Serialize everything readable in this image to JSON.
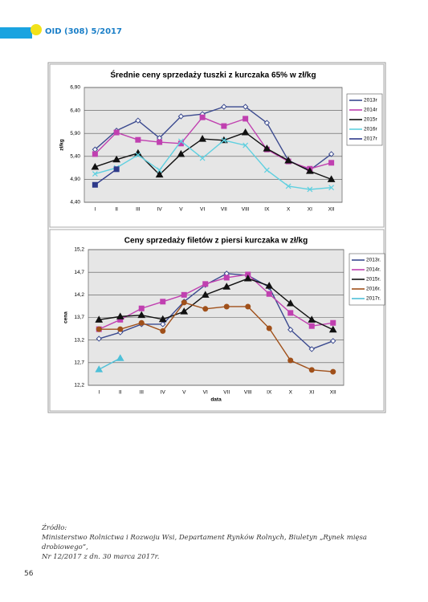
{
  "header": {
    "title": "OID (308) 5/2017"
  },
  "chart_data": [
    {
      "type": "line",
      "title": "Średnie ceny sprzedaży tuszki z kurczaka 65% w zł/kg",
      "ylabel": "zł/kg",
      "categories": [
        "I",
        "II",
        "III",
        "IV",
        "V",
        "VI",
        "VII",
        "VIII",
        "IX",
        "X",
        "XI",
        "XII"
      ],
      "ylim": [
        4.4,
        6.9
      ],
      "yticks": [
        {
          "value": 4.4,
          "label": "4,40"
        },
        {
          "value": 4.9,
          "label": "4,90"
        },
        {
          "value": 5.4,
          "label": "5,40"
        },
        {
          "value": 5.9,
          "label": "5,90"
        },
        {
          "value": 6.4,
          "label": "6,40"
        },
        {
          "value": 6.9,
          "label": "6,90"
        }
      ],
      "grid": true,
      "series": [
        {
          "name": "2013r",
          "color": "#3b4a8f",
          "marker": "diamond",
          "values": [
            5.55,
            5.96,
            6.18,
            5.8,
            6.27,
            6.32,
            6.48,
            6.48,
            6.13,
            5.31,
            5.1,
            5.45
          ]
        },
        {
          "name": "2014r",
          "color": "#c040b0",
          "marker": "square",
          "values": [
            5.45,
            5.92,
            5.76,
            5.71,
            5.68,
            6.25,
            6.06,
            6.22,
            5.55,
            5.29,
            5.13,
            5.26
          ]
        },
        {
          "name": "2015r",
          "color": "#111111",
          "marker": "triangle",
          "values": [
            5.17,
            5.33,
            5.47,
            5.0,
            5.45,
            5.78,
            5.75,
            5.92,
            5.57,
            5.31,
            5.08,
            4.9
          ]
        },
        {
          "name": "2016r",
          "color": "#5fd0e0",
          "marker": "x",
          "values": [
            5.02,
            5.15,
            5.43,
            5.1,
            5.73,
            5.36,
            5.75,
            5.64,
            5.1,
            4.75,
            4.68,
            4.72
          ]
        },
        {
          "name": "2017r",
          "color": "#2e3a8a",
          "marker": "square",
          "values": [
            4.78,
            5.12,
            null,
            null,
            null,
            null,
            null,
            null,
            null,
            null,
            null,
            null
          ]
        }
      ]
    },
    {
      "type": "line",
      "title": "Ceny sprzedaży filetów z piersi kurczaka w zł/kg",
      "ylabel": "cena",
      "xlabel": "data",
      "categories": [
        "I",
        "II",
        "III",
        "IV",
        "V",
        "VI",
        "VII",
        "VIII",
        "IX",
        "X",
        "XI",
        "XII"
      ],
      "ylim": [
        12.2,
        15.2
      ],
      "yticks": [
        {
          "value": 12.2,
          "label": "12,2"
        },
        {
          "value": 12.7,
          "label": "12,7"
        },
        {
          "value": 13.2,
          "label": "13,2"
        },
        {
          "value": 13.7,
          "label": "13,7"
        },
        {
          "value": 14.2,
          "label": "14,2"
        },
        {
          "value": 14.7,
          "label": "14,7"
        },
        {
          "value": 15.2,
          "label": "15,2"
        }
      ],
      "grid": true,
      "series": [
        {
          "name": "2013r.",
          "color": "#3b4a8f",
          "marker": "diamond",
          "values": [
            13.23,
            13.37,
            13.55,
            13.55,
            14.05,
            14.42,
            14.67,
            14.63,
            14.37,
            13.43,
            13.0,
            13.18
          ]
        },
        {
          "name": "2014r.",
          "color": "#c040b0",
          "marker": "square",
          "values": [
            13.44,
            13.65,
            13.9,
            14.05,
            14.2,
            14.44,
            14.58,
            14.65,
            14.22,
            13.8,
            13.51,
            13.58
          ]
        },
        {
          "name": "2015r.",
          "color": "#111111",
          "marker": "triangle",
          "values": [
            13.65,
            13.72,
            13.75,
            13.66,
            13.83,
            14.2,
            14.38,
            14.56,
            14.4,
            14.01,
            13.65,
            13.43
          ]
        },
        {
          "name": "2016r.",
          "color": "#a0501a",
          "marker": "circle",
          "values": [
            13.44,
            13.44,
            13.58,
            13.4,
            14.03,
            13.89,
            13.94,
            13.94,
            13.46,
            12.75,
            12.54,
            12.5
          ]
        },
        {
          "name": "2017r.",
          "color": "#4ec0d8",
          "marker": "triangle",
          "values": [
            12.55,
            12.8,
            null,
            null,
            null,
            null,
            null,
            null,
            null,
            null,
            null,
            null
          ]
        }
      ]
    }
  ],
  "source": {
    "label": "Źródło:",
    "lines": [
      "Ministerstwo Rolnictwa i Rozwoju Wsi, Departament Rynków Rolnych, Biuletyn „Rynek mięsa drobiowego”,",
      "Nr 12/2017 z dn. 30 marca 2017r."
    ]
  },
  "page_number": "56"
}
